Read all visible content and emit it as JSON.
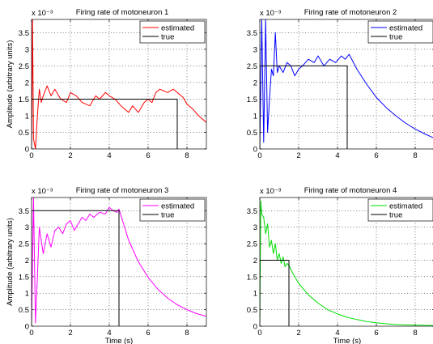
{
  "chart_data": [
    {
      "type": "line",
      "title": "Firing rate of motoneuron 1",
      "xlabel": "",
      "ylabel": "Amplitude (arbitrary units)",
      "y_exponent": "x 10⁻³",
      "xlim": [
        0,
        9
      ],
      "ylim": [
        0,
        3.9
      ],
      "xticks": [
        0,
        2,
        4,
        6,
        8
      ],
      "yticks": [
        0,
        0.5,
        1,
        1.5,
        2,
        2.5,
        3,
        3.5
      ],
      "grid": true,
      "legend": "top-right",
      "estimated_color": "#ff0000",
      "series": [
        {
          "name": "estimated",
          "x": [
            0,
            0.05,
            0.1,
            0.2,
            0.3,
            0.4,
            0.5,
            0.6,
            0.8,
            1.0,
            1.2,
            1.5,
            1.8,
            2.0,
            2.3,
            2.6,
            3.0,
            3.3,
            3.5,
            3.8,
            4.0,
            4.3,
            4.6,
            5.0,
            5.2,
            5.5,
            5.8,
            6.0,
            6.2,
            6.4,
            6.6,
            7.0,
            7.3,
            7.5,
            7.8,
            8.0,
            8.3,
            8.6,
            9.0
          ],
          "y": [
            0,
            3.9,
            0.3,
            0.0,
            1.0,
            1.8,
            1.4,
            1.6,
            1.9,
            1.6,
            1.8,
            1.5,
            1.4,
            1.7,
            1.6,
            1.4,
            1.3,
            1.6,
            1.5,
            1.7,
            1.6,
            1.5,
            1.3,
            1.1,
            1.3,
            1.1,
            1.4,
            1.5,
            1.4,
            1.7,
            1.8,
            1.7,
            1.8,
            1.7,
            1.55,
            1.35,
            1.2,
            1.0,
            0.8
          ]
        },
        {
          "name": "true",
          "x": [
            0,
            0,
            7.5,
            7.5
          ],
          "y": [
            0,
            1.5,
            1.5,
            0
          ]
        }
      ]
    },
    {
      "type": "line",
      "title": "Firing rate of motoneuron 2",
      "xlabel": "",
      "ylabel": "",
      "y_exponent": "x 10⁻³",
      "xlim": [
        0,
        9
      ],
      "ylim": [
        0,
        3.9
      ],
      "xticks": [
        0,
        2,
        4,
        6,
        8
      ],
      "yticks": [
        0,
        0.5,
        1,
        1.5,
        2,
        2.5,
        3,
        3.5
      ],
      "grid": true,
      "legend": "top-right",
      "estimated_color": "#0000ff",
      "series": [
        {
          "name": "estimated",
          "x": [
            0,
            0.1,
            0.2,
            0.3,
            0.4,
            0.5,
            0.6,
            0.7,
            0.8,
            0.9,
            1.0,
            1.2,
            1.4,
            1.6,
            1.8,
            2.0,
            2.2,
            2.5,
            2.8,
            3.0,
            3.3,
            3.6,
            3.9,
            4.2,
            4.4,
            4.6,
            5.0,
            5.5,
            6.0,
            6.5,
            7.0,
            7.5,
            8.0,
            8.5,
            9.0
          ],
          "y": [
            0,
            3.9,
            0.2,
            3.9,
            0.5,
            1.5,
            2.4,
            2.2,
            3.5,
            2.3,
            2.5,
            2.3,
            2.6,
            2.5,
            2.2,
            2.4,
            2.5,
            2.7,
            2.6,
            2.8,
            2.5,
            2.7,
            2.6,
            2.8,
            2.7,
            2.85,
            2.4,
            1.95,
            1.55,
            1.25,
            1.0,
            0.78,
            0.6,
            0.45,
            0.32
          ]
        },
        {
          "name": "true",
          "x": [
            0,
            0,
            4.5,
            4.5
          ],
          "y": [
            0,
            2.5,
            2.5,
            0
          ]
        }
      ]
    },
    {
      "type": "line",
      "title": "Firing rate of motoneuron 3",
      "xlabel": "Time (s)",
      "ylabel": "Amplitude (arbitrary units)",
      "y_exponent": "x 10⁻³",
      "xlim": [
        0,
        9
      ],
      "ylim": [
        0,
        3.9
      ],
      "xticks": [
        0,
        2,
        4,
        6,
        8
      ],
      "yticks": [
        0,
        0.5,
        1,
        1.5,
        2,
        2.5,
        3,
        3.5
      ],
      "grid": true,
      "legend": "top-right",
      "estimated_color": "#ff00ff",
      "series": [
        {
          "name": "estimated",
          "x": [
            0,
            0.1,
            0.2,
            0.3,
            0.4,
            0.5,
            0.6,
            0.8,
            1.0,
            1.2,
            1.4,
            1.6,
            1.8,
            2.0,
            2.2,
            2.4,
            2.6,
            2.8,
            3.0,
            3.2,
            3.5,
            3.8,
            4.0,
            4.2,
            4.4,
            4.5,
            5.0,
            5.5,
            6.0,
            6.5,
            7.0,
            7.5,
            8.0,
            8.5,
            9.0
          ],
          "y": [
            0,
            3.9,
            0.1,
            1.5,
            3.0,
            2.6,
            2.2,
            2.8,
            2.4,
            2.9,
            3.0,
            2.8,
            3.1,
            3.2,
            2.9,
            3.1,
            3.3,
            3.2,
            3.4,
            3.3,
            3.45,
            3.4,
            3.6,
            3.5,
            3.45,
            3.55,
            2.6,
            1.95,
            1.48,
            1.12,
            0.85,
            0.65,
            0.5,
            0.38,
            0.3
          ]
        },
        {
          "name": "true",
          "x": [
            0,
            0,
            4.5,
            4.5
          ],
          "y": [
            0,
            3.5,
            3.5,
            0
          ]
        }
      ]
    },
    {
      "type": "line",
      "title": "Firing rate of motoneuron 4",
      "xlabel": "Time (s)",
      "ylabel": "",
      "y_exponent": "x 10⁻³",
      "xlim": [
        0,
        9
      ],
      "ylim": [
        0,
        3.9
      ],
      "xticks": [
        0,
        2,
        4,
        6,
        8
      ],
      "yticks": [
        0,
        0.5,
        1,
        1.5,
        2,
        2.5,
        3,
        3.5
      ],
      "grid": true,
      "legend": "top-right",
      "estimated_color": "#00dd00",
      "series": [
        {
          "name": "estimated",
          "x": [
            0,
            0.05,
            0.1,
            0.2,
            0.3,
            0.4,
            0.5,
            0.6,
            0.7,
            0.8,
            0.9,
            1.0,
            1.1,
            1.2,
            1.3,
            1.4,
            1.5,
            1.7,
            2.0,
            2.5,
            3.0,
            3.5,
            4.0,
            4.5,
            5.0,
            5.5,
            6.0,
            7.0,
            8.0,
            9.0
          ],
          "y": [
            0,
            3.8,
            3.4,
            3.3,
            2.8,
            3.1,
            2.4,
            2.6,
            2.2,
            2.5,
            2.0,
            2.2,
            1.9,
            2.1,
            1.8,
            1.9,
            1.85,
            1.6,
            1.3,
            0.95,
            0.7,
            0.5,
            0.37,
            0.27,
            0.2,
            0.14,
            0.1,
            0.05,
            0.03,
            0.02
          ]
        },
        {
          "name": "true",
          "x": [
            0,
            0,
            1.5,
            1.5
          ],
          "y": [
            0,
            2.0,
            2.0,
            0
          ]
        }
      ]
    }
  ]
}
